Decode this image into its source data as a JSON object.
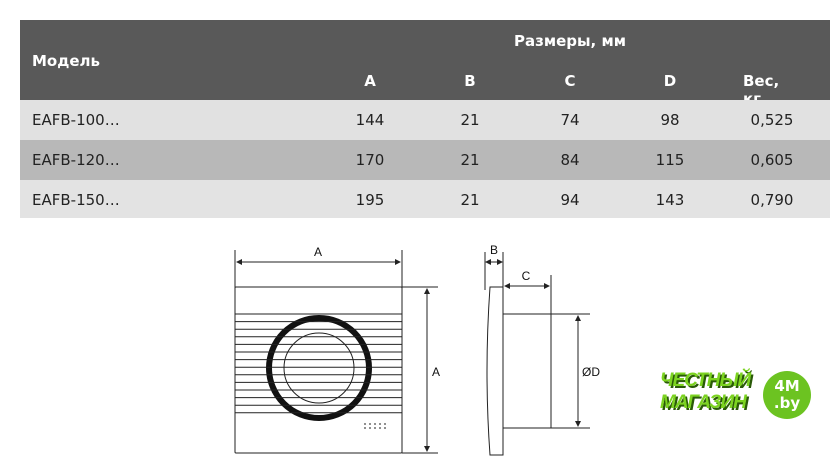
{
  "table": {
    "header": {
      "model": "Модель",
      "dimensions": "Размеры, мм",
      "cols": [
        "A",
        "B",
        "C",
        "D",
        "Вес, кг"
      ]
    },
    "rows": [
      {
        "model": "EAFB-100…",
        "values": [
          "144",
          "21",
          "74",
          "98",
          "0,525"
        ]
      },
      {
        "model": "EAFB-120…",
        "values": [
          "170",
          "21",
          "84",
          "115",
          "0,605"
        ]
      },
      {
        "model": "EAFB-150…",
        "values": [
          "195",
          "21",
          "94",
          "143",
          "0,790"
        ]
      }
    ]
  },
  "drawing": {
    "front_width": "A",
    "front_height": "A",
    "side_b": "B",
    "side_c": "C",
    "side_d": "ØD"
  },
  "logo": {
    "line1": "ЧЕСТНЫЙ",
    "line2": "МАГАЗИН",
    "circle1": "4M",
    "circle2": ".by",
    "color": "#6cc321"
  }
}
